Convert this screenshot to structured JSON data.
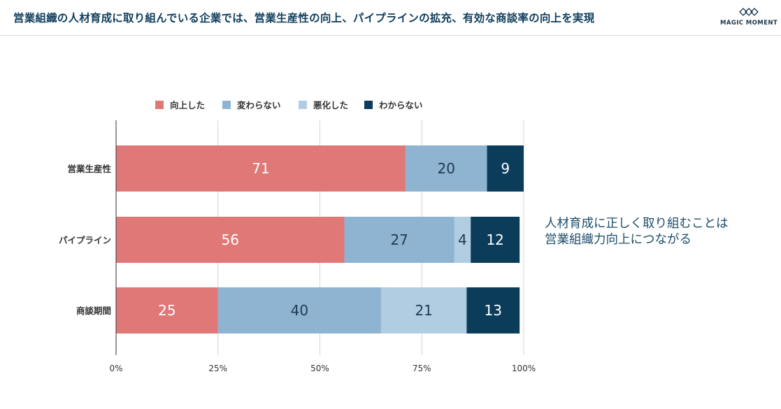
{
  "header": {
    "title": "営業組織の人材育成に取り組んでいる企業では、営業生産性の向上、パイプラインの拡充、有効な商談率の向上を実現",
    "logo_text": "MAGIC MOMENT"
  },
  "callout": {
    "line1": "人材育成に正しく取り組むことは",
    "line2": "営業組織力向上につながる"
  },
  "chart_data": {
    "type": "bar",
    "orientation": "horizontal",
    "stacked": true,
    "categories": [
      "営業生産性",
      "パイプライン",
      "商談期間"
    ],
    "series": [
      {
        "name": "向上した",
        "color": "#e07878",
        "label_color": "#ffffff",
        "values": [
          71,
          56,
          25
        ]
      },
      {
        "name": "変わらない",
        "color": "#8fb4d1",
        "label_color": "#1e3a52",
        "values": [
          20,
          27,
          40
        ]
      },
      {
        "name": "悪化した",
        "color": "#b1cde2",
        "label_color": "#1e3a52",
        "values": [
          0,
          4,
          21
        ]
      },
      {
        "name": "わからない",
        "color": "#0b3d5a",
        "label_color": "#ffffff",
        "values": [
          9,
          12,
          13
        ]
      }
    ],
    "x_ticks": [
      "0%",
      "25%",
      "50%",
      "75%",
      "100%"
    ],
    "xlim": [
      0,
      100
    ],
    "grid": true,
    "legend_position": "top"
  }
}
